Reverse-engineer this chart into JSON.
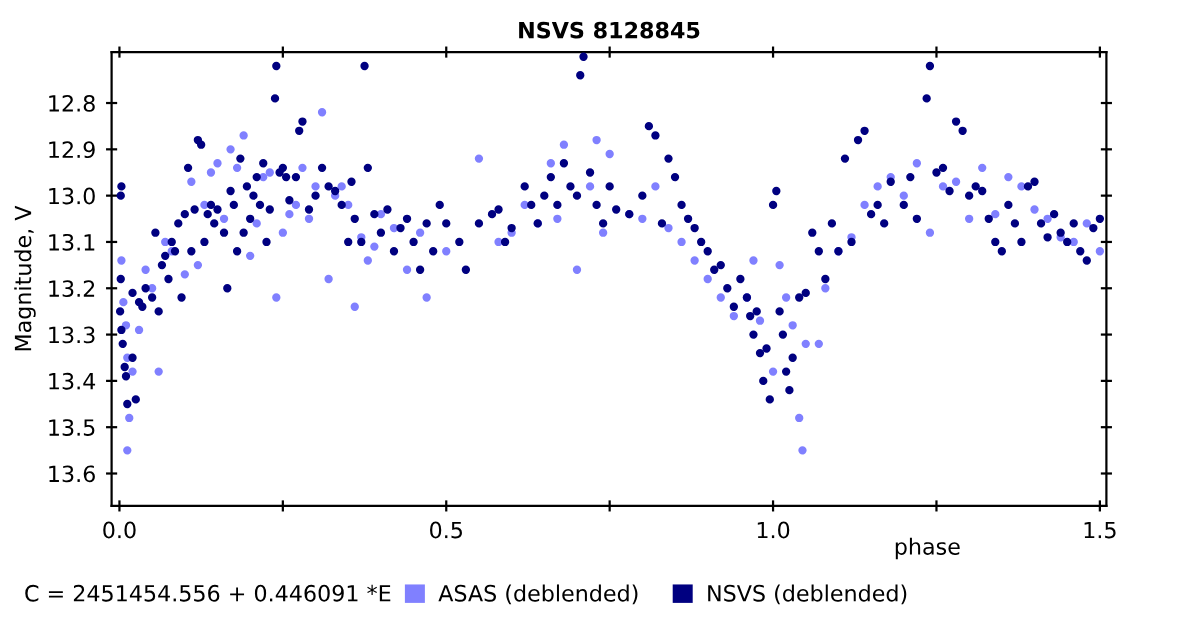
{
  "chart_data": {
    "type": "scatter",
    "title": "NSVS 8128845",
    "xlabel": "phase",
    "ylabel": "Magnitude, V",
    "annotations": [
      "C = 2451454.556 + 0.446091 *E"
    ],
    "xlim": [
      -0.012,
      1.51
    ],
    "ylim": [
      13.67,
      12.69
    ],
    "xticks": [
      {
        "value": 0,
        "label": "0.0"
      },
      {
        "value": 0.25,
        "label": null
      },
      0.5,
      {
        "value": 0.75,
        "label": null
      },
      {
        "value": 1,
        "label": "1.0"
      },
      {
        "value": 1.25,
        "label": null
      },
      1.5
    ],
    "yticks": [
      12.8,
      12.9,
      {
        "value": 13,
        "label": "13.0"
      },
      13.1,
      13.2,
      13.3,
      13.4,
      13.5,
      13.6
    ],
    "grid": false,
    "legend": "bottom",
    "marker": "circle",
    "series": [
      {
        "name": "ASAS (deblended)",
        "color": "#8080ff",
        "x": [
          0.003,
          0.006,
          0.01,
          0.012,
          0.015,
          0.012,
          0.02,
          0.03,
          0.04,
          0.05,
          0.06,
          0.07,
          0.08,
          0.1,
          0.11,
          0.12,
          0.13,
          0.14,
          0.15,
          0.16,
          0.17,
          0.18,
          0.19,
          0.2,
          0.21,
          0.22,
          0.23,
          0.24,
          0.25,
          0.26,
          0.27,
          0.28,
          0.29,
          0.3,
          0.31,
          0.32,
          0.33,
          0.34,
          0.35,
          0.36,
          0.37,
          0.38,
          0.39,
          0.4,
          0.42,
          0.44,
          0.46,
          0.47,
          0.5,
          0.55,
          0.58,
          0.6,
          0.62,
          0.64,
          0.66,
          0.67,
          0.68,
          0.7,
          0.72,
          0.73,
          0.74,
          0.75,
          0.78,
          0.8,
          0.82,
          0.84,
          0.86,
          0.88,
          0.9,
          0.92,
          0.94,
          0.96,
          0.97,
          0.98,
          1.0,
          1.01,
          1.02,
          1.03,
          1.04,
          1.045,
          1.05,
          1.07,
          1.08,
          1.1,
          1.12,
          1.14,
          1.16,
          1.18,
          1.2,
          1.22,
          1.24,
          1.26,
          1.28,
          1.3,
          1.32,
          1.34,
          1.36,
          1.38,
          1.4,
          1.42,
          1.44,
          1.46,
          1.48,
          1.5
        ],
        "values": [
          13.14,
          13.23,
          13.28,
          13.35,
          13.48,
          13.55,
          13.38,
          13.29,
          13.16,
          13.2,
          13.38,
          13.1,
          13.12,
          13.17,
          12.97,
          13.15,
          13.02,
          12.95,
          12.93,
          13.05,
          12.9,
          12.94,
          12.87,
          13.13,
          13.06,
          12.96,
          12.95,
          13.22,
          13.08,
          13.04,
          13.02,
          12.94,
          13.05,
          12.98,
          12.82,
          13.18,
          13.0,
          12.98,
          13.02,
          13.24,
          13.09,
          13.14,
          13.11,
          13.04,
          13.07,
          13.16,
          13.08,
          13.22,
          13.12,
          12.92,
          13.1,
          13.08,
          13.02,
          13.06,
          12.93,
          13.05,
          12.89,
          13.16,
          12.98,
          12.88,
          13.08,
          12.91,
          13.04,
          13.05,
          12.98,
          13.07,
          13.1,
          13.14,
          13.18,
          13.22,
          13.26,
          13.22,
          13.14,
          13.27,
          13.38,
          13.15,
          13.22,
          13.28,
          13.48,
          13.55,
          13.32,
          13.32,
          13.2,
          13.12,
          13.09,
          13.02,
          12.98,
          12.96,
          13.0,
          12.93,
          13.08,
          12.98,
          12.97,
          13.05,
          12.94,
          13.04,
          12.96,
          12.98,
          13.03,
          13.05,
          13.09,
          13.1,
          13.06,
          13.12
        ]
      },
      {
        "name": "NSVS (deblended)",
        "color": "#000080",
        "x": [
          0.002,
          0.003,
          0.002,
          0.001,
          0.003,
          0.005,
          0.008,
          0.01,
          0.012,
          0.02,
          0.025,
          0.02,
          0.03,
          0.035,
          0.04,
          0.05,
          0.055,
          0.06,
          0.065,
          0.07,
          0.075,
          0.08,
          0.085,
          0.09,
          0.095,
          0.1,
          0.105,
          0.11,
          0.115,
          0.12,
          0.125,
          0.13,
          0.135,
          0.14,
          0.145,
          0.15,
          0.16,
          0.165,
          0.17,
          0.175,
          0.18,
          0.185,
          0.19,
          0.195,
          0.2,
          0.205,
          0.21,
          0.215,
          0.22,
          0.225,
          0.23,
          0.238,
          0.24,
          0.245,
          0.25,
          0.255,
          0.26,
          0.27,
          0.275,
          0.28,
          0.29,
          0.3,
          0.31,
          0.32,
          0.33,
          0.34,
          0.35,
          0.355,
          0.36,
          0.37,
          0.375,
          0.38,
          0.39,
          0.4,
          0.41,
          0.42,
          0.43,
          0.44,
          0.45,
          0.46,
          0.47,
          0.48,
          0.49,
          0.5,
          0.52,
          0.53,
          0.55,
          0.57,
          0.58,
          0.59,
          0.6,
          0.62,
          0.63,
          0.64,
          0.65,
          0.66,
          0.67,
          0.68,
          0.69,
          0.7,
          0.705,
          0.71,
          0.72,
          0.73,
          0.74,
          0.75,
          0.76,
          0.78,
          0.8,
          0.81,
          0.82,
          0.83,
          0.84,
          0.85,
          0.86,
          0.87,
          0.88,
          0.89,
          0.9,
          0.91,
          0.92,
          0.93,
          0.94,
          0.95,
          0.96,
          0.965,
          0.97,
          0.975,
          0.98,
          0.985,
          0.99,
          0.995,
          1.0,
          1.005,
          1.01,
          1.015,
          1.02,
          1.025,
          1.03,
          1.04,
          1.05,
          1.06,
          1.07,
          1.08,
          1.09,
          1.1,
          1.11,
          1.12,
          1.13,
          1.14,
          1.15,
          1.16,
          1.17,
          1.18,
          1.2,
          1.21,
          1.22,
          1.235,
          1.24,
          1.25,
          1.26,
          1.27,
          1.28,
          1.29,
          1.3,
          1.31,
          1.32,
          1.33,
          1.34,
          1.35,
          1.36,
          1.37,
          1.38,
          1.39,
          1.4,
          1.41,
          1.42,
          1.43,
          1.44,
          1.45,
          1.46,
          1.47,
          1.48,
          1.49,
          1.5
        ],
        "values": [
          13.0,
          12.98,
          13.18,
          13.25,
          13.29,
          13.32,
          13.37,
          13.39,
          13.45,
          13.35,
          13.44,
          13.21,
          13.23,
          13.24,
          13.2,
          13.22,
          13.08,
          13.25,
          13.15,
          13.13,
          13.18,
          13.1,
          13.12,
          13.06,
          13.22,
          13.04,
          12.94,
          13.12,
          13.03,
          12.88,
          12.89,
          13.1,
          13.04,
          13.02,
          13.06,
          13.03,
          13.08,
          13.2,
          12.99,
          13.02,
          13.12,
          12.92,
          13.08,
          12.98,
          13.05,
          13.0,
          12.96,
          13.02,
          12.93,
          13.1,
          13.03,
          12.79,
          12.72,
          12.95,
          12.94,
          12.96,
          13.01,
          12.96,
          12.86,
          12.84,
          13.03,
          13.0,
          12.94,
          12.98,
          12.99,
          13.02,
          13.1,
          12.97,
          13.05,
          13.1,
          12.72,
          12.94,
          13.04,
          13.08,
          13.03,
          13.12,
          13.07,
          13.05,
          13.1,
          13.16,
          13.06,
          13.12,
          13.02,
          13.06,
          13.1,
          13.16,
          13.06,
          13.04,
          13.03,
          13.1,
          13.07,
          12.98,
          13.02,
          13.06,
          13.0,
          12.96,
          13.02,
          12.93,
          12.98,
          13.0,
          12.74,
          12.7,
          12.95,
          13.02,
          13.06,
          12.98,
          13.03,
          13.04,
          13.0,
          12.85,
          12.87,
          13.06,
          12.92,
          12.96,
          13.02,
          13.05,
          13.07,
          13.1,
          13.12,
          13.16,
          13.15,
          13.2,
          13.24,
          13.18,
          13.22,
          13.26,
          13.3,
          13.25,
          13.34,
          13.4,
          13.33,
          13.44,
          13.02,
          12.99,
          13.25,
          13.3,
          13.38,
          13.42,
          13.35,
          13.22,
          13.21,
          13.08,
          13.12,
          13.18,
          13.06,
          13.12,
          12.92,
          13.1,
          12.88,
          12.86,
          13.04,
          13.02,
          13.06,
          12.97,
          13.02,
          12.96,
          13.05,
          12.79,
          12.72,
          12.95,
          12.94,
          12.99,
          12.84,
          12.86,
          13.0,
          12.98,
          12.99,
          13.05,
          13.1,
          13.12,
          13.02,
          13.06,
          13.1,
          12.98,
          12.97,
          13.06,
          13.09,
          13.04,
          13.08,
          13.1,
          13.06,
          13.12,
          13.14,
          13.07,
          13.05
        ]
      }
    ]
  }
}
